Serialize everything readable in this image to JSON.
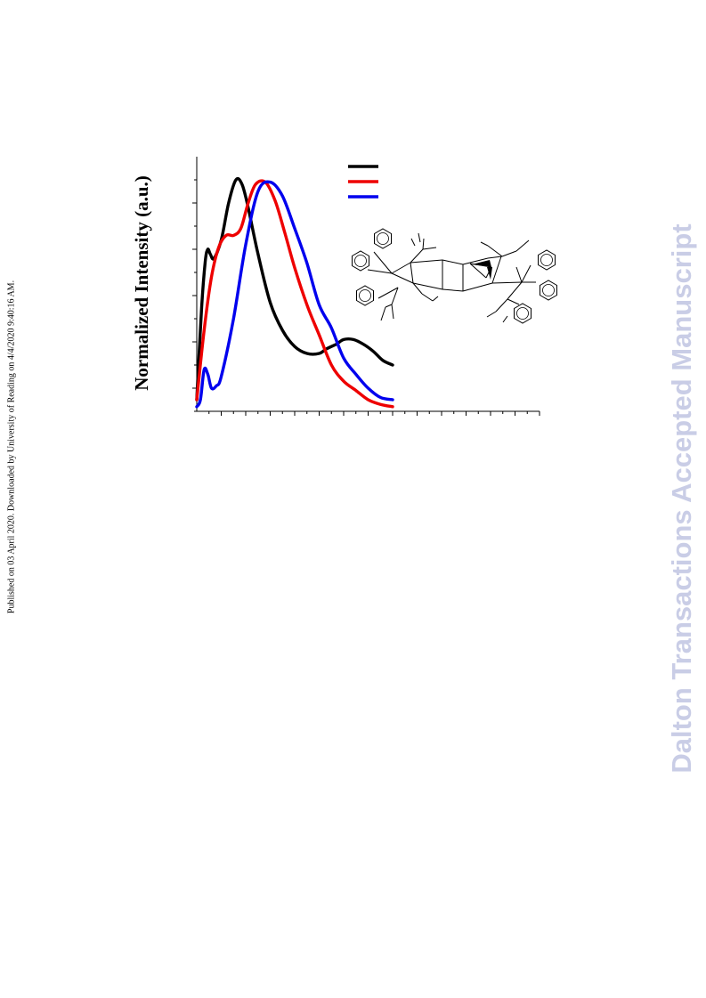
{
  "side_note": "Published on 03 April 2020. Downloaded by University of Reading on 4/4/2020 9:40:16 AM.",
  "watermark": "Dalton Transactions Accepted Manuscript",
  "colors": {
    "black": "#000000",
    "red": "#ee0000",
    "blue": "#0000ee"
  },
  "chart_data": {
    "type": "line",
    "title": "",
    "xlabel": "",
    "ylabel": "Normalized Intensity (a.u.)",
    "xlim": [
      0,
      14
    ],
    "ylim": [
      0,
      1.1
    ],
    "grid": false,
    "series": [
      {
        "color": "#000000",
        "x": [
          0,
          0.2,
          0.35,
          0.45,
          0.55,
          0.7,
          1.0,
          1.3,
          1.6,
          1.85,
          2.1,
          2.5,
          3.0,
          3.5,
          4.0,
          4.5,
          5.0,
          5.3,
          5.7,
          6.0,
          6.4,
          6.8,
          7.2,
          7.6,
          8.0
        ],
        "y": [
          0.05,
          0.45,
          0.65,
          0.7,
          0.68,
          0.66,
          0.74,
          0.9,
          1.0,
          0.98,
          0.88,
          0.68,
          0.47,
          0.35,
          0.28,
          0.25,
          0.25,
          0.27,
          0.29,
          0.31,
          0.31,
          0.29,
          0.26,
          0.22,
          0.2
        ]
      },
      {
        "color": "#ee0000",
        "x": [
          0,
          0.3,
          0.6,
          0.9,
          1.2,
          1.5,
          1.8,
          2.1,
          2.4,
          2.8,
          3.2,
          3.6,
          4.0,
          4.5,
          5.0,
          5.5,
          6.0,
          6.5,
          7.0,
          7.5,
          8.0
        ],
        "y": [
          0.05,
          0.35,
          0.58,
          0.71,
          0.76,
          0.76,
          0.79,
          0.9,
          0.98,
          0.99,
          0.91,
          0.77,
          0.62,
          0.46,
          0.33,
          0.2,
          0.13,
          0.09,
          0.05,
          0.03,
          0.02
        ]
      },
      {
        "color": "#0000ee",
        "x": [
          0,
          0.15,
          0.3,
          0.45,
          0.6,
          0.8,
          1.0,
          1.5,
          2.0,
          2.5,
          3.0,
          3.5,
          4.0,
          4.5,
          5.0,
          5.5,
          6.0,
          6.5,
          7.0,
          7.5,
          8.0
        ],
        "y": [
          0.02,
          0.05,
          0.18,
          0.16,
          0.1,
          0.11,
          0.15,
          0.4,
          0.72,
          0.95,
          0.99,
          0.93,
          0.79,
          0.64,
          0.46,
          0.36,
          0.23,
          0.16,
          0.1,
          0.06,
          0.05
        ]
      }
    ]
  }
}
